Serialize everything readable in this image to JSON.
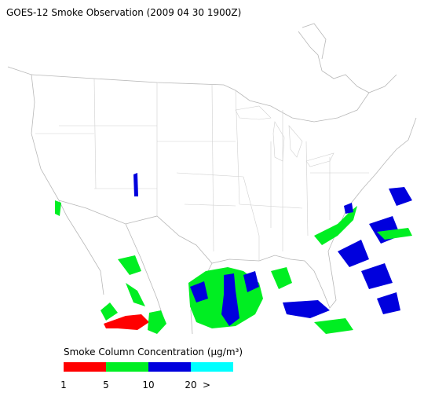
{
  "title": "GOES-12 Smoke Observation (2009 04 30  1900Z)",
  "legend": {
    "title": "Smoke Column Concentration (µg/m³)",
    "colors": [
      "#ff0000",
      "#00ee22",
      "#0000dd",
      "#00ffff"
    ],
    "ticks": [
      1,
      5,
      10,
      20
    ],
    "overflow_label": ">"
  }
}
